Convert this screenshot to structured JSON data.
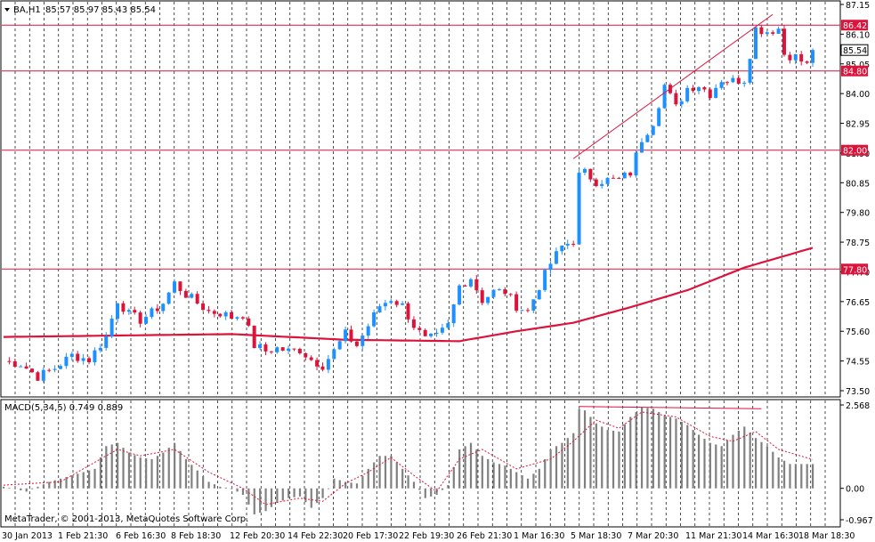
{
  "colors": {
    "background": "#ffffff",
    "frame": "#000000",
    "grid": "#000000",
    "bull": "#1e90ff",
    "bear": "#dc143c",
    "ma": "#dc143c",
    "hline": "#dc143c",
    "trendline": "#dc143c",
    "macd_hist": "#808080",
    "macd_signal": "#dc143c",
    "price_label_bg": "#dc143c",
    "current_label_bg": "#ffffff"
  },
  "header": {
    "arrow_icon": "triangle-down-icon",
    "symbol": "BA,H1",
    "ohlc": "85.57 85.97 85.43 85.54"
  },
  "macd_header": "MACD(5,34,5) 0.749 0.889",
  "copyright": "MetaTrader, © 2001-2013, MetaQuotes Software Corp.",
  "chart_data": [
    {
      "type": "candlestick",
      "symbol": "BA",
      "timeframe": "H1",
      "ylim": [
        73.5,
        87.15
      ],
      "y_ticks": [
        87.15,
        86.1,
        85.05,
        84.0,
        82.95,
        81.9,
        80.85,
        79.8,
        78.75,
        77.7,
        76.65,
        75.6,
        74.55,
        73.5
      ],
      "x_tick_labels": [
        "30 Jan 2013",
        "1 Feb 21:30",
        "6 Feb 16:30",
        "8 Feb 18:30",
        "12 Feb 20:30",
        "14 Feb 22:30",
        "20 Feb 17:30",
        "22 Feb 19:30",
        "26 Feb 21:30",
        "1 Mar 16:30",
        "5 Mar 18:30",
        "7 Mar 20:30",
        "11 Mar 21:30",
        "14 Mar 16:30",
        "18 Mar 18:30"
      ],
      "grid": "vertical dashed",
      "horizontal_levels": [
        86.42,
        84.8,
        82.0,
        77.8
      ],
      "current_price": 85.54,
      "close_path": [
        [
          0,
          74.55
        ],
        [
          3,
          74.45
        ],
        [
          6,
          74.0
        ],
        [
          9,
          74.3
        ],
        [
          12,
          74.75
        ],
        [
          15,
          74.6
        ],
        [
          18,
          75.4
        ],
        [
          20,
          76.7
        ],
        [
          22,
          76.2
        ],
        [
          24,
          76.0
        ],
        [
          26,
          76.25
        ],
        [
          28,
          76.6
        ],
        [
          30,
          77.3
        ],
        [
          32,
          76.9
        ],
        [
          34,
          76.6
        ],
        [
          36,
          76.3
        ],
        [
          38,
          76.25
        ],
        [
          40,
          76.1
        ],
        [
          42,
          76.2
        ],
        [
          44,
          75.1
        ],
        [
          46,
          74.9
        ],
        [
          48,
          75.0
        ],
        [
          50,
          74.9
        ],
        [
          52,
          74.95
        ],
        [
          54,
          74.6
        ],
        [
          56,
          74.4
        ],
        [
          58,
          74.9
        ],
        [
          60,
          75.5
        ],
        [
          62,
          75.1
        ],
        [
          64,
          75.8
        ],
        [
          66,
          76.5
        ],
        [
          68,
          76.75
        ],
        [
          70,
          76.5
        ],
        [
          72,
          75.8
        ],
        [
          74,
          75.3
        ],
        [
          76,
          75.4
        ],
        [
          78,
          75.8
        ],
        [
          80,
          77.2
        ],
        [
          82,
          77.5
        ],
        [
          84,
          76.7
        ],
        [
          86,
          77.0
        ],
        [
          88,
          77.0
        ],
        [
          90,
          76.5
        ],
        [
          92,
          76.3
        ],
        [
          94,
          77.2
        ],
        [
          96,
          78.0
        ],
        [
          98,
          78.6
        ],
        [
          100,
          78.8
        ],
        [
          101,
          81.1
        ],
        [
          102,
          81.2
        ],
        [
          104,
          80.9
        ],
        [
          106,
          80.95
        ],
        [
          108,
          80.95
        ],
        [
          110,
          81.2
        ],
        [
          112,
          82.4
        ],
        [
          114,
          83.0
        ],
        [
          116,
          84.3
        ],
        [
          118,
          83.5
        ],
        [
          120,
          84.2
        ],
        [
          122,
          84.3
        ],
        [
          124,
          84.0
        ],
        [
          126,
          84.5
        ],
        [
          128,
          84.45
        ],
        [
          130,
          84.5
        ],
        [
          132,
          86.3
        ],
        [
          134,
          86.2
        ],
        [
          136,
          86.3
        ],
        [
          137,
          85.4
        ],
        [
          139,
          85.3
        ],
        [
          141,
          85.0
        ],
        [
          142,
          85.54
        ]
      ],
      "moving_average": [
        [
          0,
          75.4
        ],
        [
          20,
          75.45
        ],
        [
          40,
          75.5
        ],
        [
          60,
          75.3
        ],
        [
          80,
          75.25
        ],
        [
          90,
          75.6
        ],
        [
          100,
          75.9
        ],
        [
          110,
          76.45
        ],
        [
          120,
          77.05
        ],
        [
          130,
          77.85
        ],
        [
          142,
          78.55
        ]
      ],
      "trendline": {
        "from": [
          100,
          81.7
        ],
        "to": [
          135,
          86.8
        ]
      }
    },
    {
      "type": "bar",
      "name": "MACD(5,34,5)",
      "ylim": [
        -0.967,
        2.568
      ],
      "y_ticks": [
        2.568,
        0.0,
        -0.967
      ],
      "macd_value": 0.749,
      "signal_value": 0.889,
      "macd_path": [
        [
          0,
          0.05
        ],
        [
          4,
          -0.1
        ],
        [
          8,
          0.2
        ],
        [
          12,
          0.4
        ],
        [
          16,
          0.6
        ],
        [
          18,
          1.3
        ],
        [
          20,
          1.4
        ],
        [
          22,
          1.1
        ],
        [
          24,
          0.95
        ],
        [
          26,
          0.9
        ],
        [
          28,
          1.1
        ],
        [
          30,
          1.4
        ],
        [
          32,
          0.9
        ],
        [
          34,
          0.55
        ],
        [
          36,
          0.2
        ],
        [
          38,
          0.05
        ],
        [
          40,
          0.0
        ],
        [
          42,
          -0.2
        ],
        [
          44,
          -0.8
        ],
        [
          46,
          -0.7
        ],
        [
          48,
          -0.45
        ],
        [
          50,
          -0.3
        ],
        [
          52,
          -0.25
        ],
        [
          54,
          -0.6
        ],
        [
          56,
          -0.3
        ],
        [
          58,
          0.3
        ],
        [
          60,
          0.2
        ],
        [
          62,
          0.15
        ],
        [
          64,
          0.6
        ],
        [
          66,
          1.0
        ],
        [
          68,
          1.0
        ],
        [
          70,
          0.6
        ],
        [
          72,
          0.2
        ],
        [
          74,
          -0.3
        ],
        [
          76,
          -0.2
        ],
        [
          78,
          0.1
        ],
        [
          80,
          1.2
        ],
        [
          82,
          1.4
        ],
        [
          84,
          1.0
        ],
        [
          86,
          0.8
        ],
        [
          88,
          0.7
        ],
        [
          90,
          0.5
        ],
        [
          92,
          0.3
        ],
        [
          94,
          0.6
        ],
        [
          96,
          1.2
        ],
        [
          98,
          1.4
        ],
        [
          100,
          1.7
        ],
        [
          101,
          2.45
        ],
        [
          102,
          2.4
        ],
        [
          104,
          2.0
        ],
        [
          106,
          1.8
        ],
        [
          108,
          1.75
        ],
        [
          110,
          2.2
        ],
        [
          112,
          2.5
        ],
        [
          114,
          2.45
        ],
        [
          116,
          2.25
        ],
        [
          118,
          2.15
        ],
        [
          120,
          1.95
        ],
        [
          122,
          1.65
        ],
        [
          124,
          1.4
        ],
        [
          126,
          1.3
        ],
        [
          128,
          1.65
        ],
        [
          130,
          1.9
        ],
        [
          132,
          1.55
        ],
        [
          134,
          1.3
        ],
        [
          136,
          0.95
        ],
        [
          138,
          0.75
        ],
        [
          142,
          0.749
        ]
      ],
      "signal_path": [
        [
          0,
          0.1
        ],
        [
          10,
          0.2
        ],
        [
          20,
          1.2
        ],
        [
          24,
          1.0
        ],
        [
          30,
          1.2
        ],
        [
          36,
          0.5
        ],
        [
          42,
          0.0
        ],
        [
          46,
          -0.5
        ],
        [
          52,
          -0.3
        ],
        [
          56,
          -0.4
        ],
        [
          60,
          0.15
        ],
        [
          64,
          0.5
        ],
        [
          68,
          0.95
        ],
        [
          72,
          0.4
        ],
        [
          76,
          -0.1
        ],
        [
          80,
          0.9
        ],
        [
          84,
          1.2
        ],
        [
          90,
          0.6
        ],
        [
          96,
          0.9
        ],
        [
          100,
          1.45
        ],
        [
          104,
          2.1
        ],
        [
          108,
          1.85
        ],
        [
          112,
          2.35
        ],
        [
          118,
          2.2
        ],
        [
          124,
          1.6
        ],
        [
          128,
          1.45
        ],
        [
          132,
          1.75
        ],
        [
          136,
          1.2
        ],
        [
          142,
          0.889
        ]
      ],
      "resistance_line": {
        "from": [
          101,
          2.52
        ],
        "to": [
          133,
          2.45
        ]
      }
    }
  ]
}
